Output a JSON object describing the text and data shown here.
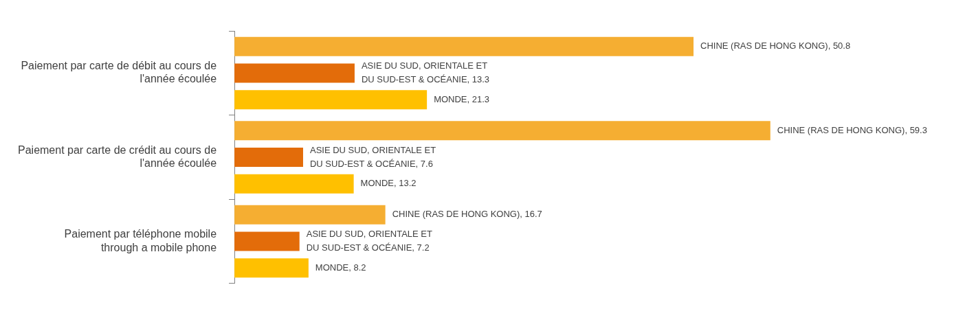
{
  "chart_data": {
    "type": "bar",
    "orientation": "horizontal",
    "categories": [
      "Paiement par carte de débit au cours de\nl'année écoulée",
      "Paiement par carte de crédit au cours de\nl'année écoulée",
      "Paiement par téléphone mobile\nthrough a mobile phone"
    ],
    "series": [
      {
        "color": "#f5ae32",
        "values": [
          50.8,
          59.3,
          16.7
        ],
        "value_labels": [
          "CHINE (RAS DE HONG KONG), 50.8",
          "CHINE (RAS DE HONG KONG), 59.3",
          "CHINE (RAS DE HONG KONG), 16.7"
        ]
      },
      {
        "color": "#e36c0a",
        "values": [
          13.3,
          7.6,
          7.2
        ],
        "value_labels": [
          "ASIE DU SUD, ORIENTALE ET DU SUD-EST & OCÉANIE, 13.3",
          "ASIE DU SUD, ORIENTALE ET DU SUD-EST & OCÉANIE, 7.6",
          "ASIE DU SUD, ORIENTALE ET DU SUD-EST & OCÉANIE, 7.2"
        ]
      },
      {
        "color": "#ffc000",
        "values": [
          21.3,
          13.2,
          8.2
        ],
        "value_labels": [
          "MONDE, 21.3",
          "MONDE, 13.2",
          "MONDE, 8.2"
        ]
      }
    ],
    "tick_labels": "y",
    "legend": false
  }
}
